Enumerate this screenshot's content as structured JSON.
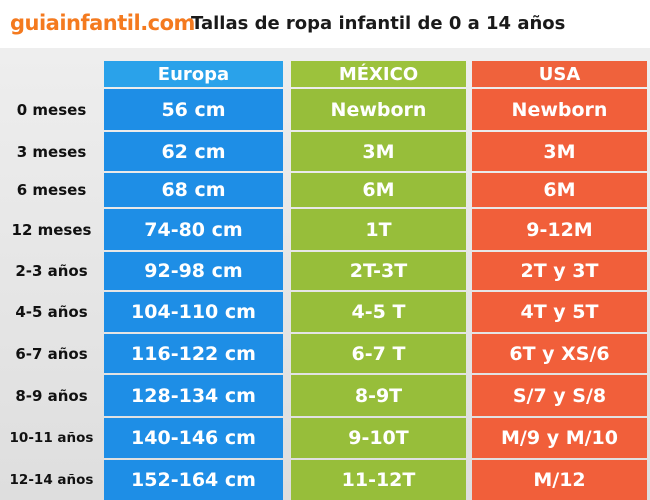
{
  "header": {
    "logo": "guiainfantil.com",
    "title": "Tallas de ropa infantil de 0 a 14 años"
  },
  "columns": [
    "Europa",
    "MÉXICO",
    "USA"
  ],
  "rows": [
    {
      "label": "0 meses",
      "europa": "56 cm",
      "mexico": "Newborn",
      "usa": "Newborn"
    },
    {
      "label": "3 meses",
      "europa": "62 cm",
      "mexico": "3M",
      "usa": "3M"
    },
    {
      "label": "6 meses",
      "europa": "68 cm",
      "mexico": "6M",
      "usa": "6M"
    },
    {
      "label": "12 meses",
      "europa": "74-80 cm",
      "mexico": "1T",
      "usa": "9-12M"
    },
    {
      "label": "2-3 años",
      "europa": "92-98 cm",
      "mexico": "2T-3T",
      "usa": "2T y 3T"
    },
    {
      "label": "4-5 años",
      "europa": "104-110 cm",
      "mexico": "4-5 T",
      "usa": "4T y 5T"
    },
    {
      "label": "6-7 años",
      "europa": "116-122 cm",
      "mexico": "6-7 T",
      "usa": "6T y XS/6"
    },
    {
      "label": "8-9 años",
      "europa": "128-134 cm",
      "mexico": "8-9T",
      "usa": "S/7 y S/8"
    },
    {
      "label": "10-11 años",
      "europa": "140-146 cm",
      "mexico": "9-10T",
      "usa": "M/9 y M/10"
    },
    {
      "label": "12-14 años",
      "europa": "152-164 cm",
      "mexico": "11-12T",
      "usa": "M/12"
    }
  ]
}
